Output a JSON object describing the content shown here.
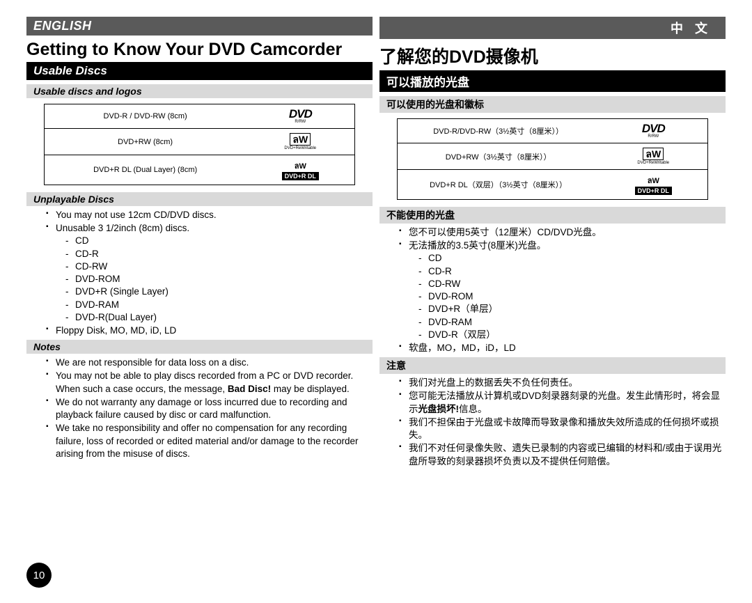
{
  "left": {
    "lang": "ENGLISH",
    "title": "Getting to Know Your DVD Camcorder",
    "section": "Usable Discs",
    "tableHead": "Usable discs and logos",
    "discs": [
      {
        "label": "DVD-R / DVD-RW (8cm)",
        "logo": "dvd",
        "sub": "R/RW"
      },
      {
        "label": "DVD+RW (8cm)",
        "logo": "rw",
        "sub": "DVD+ReWritable"
      },
      {
        "label": "DVD+R DL (Dual Layer) (8cm)",
        "logo": "rdl",
        "top": "ลW",
        "sub": "DVD+R DL"
      }
    ],
    "unplayHead": "Unplayable Discs",
    "unplay1": "You may not use 12cm CD/DVD discs.",
    "unplay2": "Unusable 3 1/2inch (8cm) discs.",
    "unplayList": [
      "CD",
      "CD-R",
      "CD-RW",
      "DVD-ROM",
      "DVD+R (Single Layer)",
      "DVD-RAM",
      "DVD-R(Dual Layer)"
    ],
    "unplay3": "Floppy Disk, MO, MD, iD, LD",
    "notesHead": "Notes",
    "note1": "We are not responsible for data loss on a disc.",
    "note2a": "You may not be able to play discs recorded from a PC or DVD recorder. When such a case occurs, the message, ",
    "note2b": "Bad Disc!",
    "note2c": " may be displayed.",
    "note3": "We do not warranty any damage or loss incurred due to recording and playback failure caused by disc or card malfunction.",
    "note4": "We take no responsibility and offer no compensation for any recording failure, loss of recorded or edited material and/or damage to the recorder arising from the misuse of discs."
  },
  "right": {
    "lang": "中  文",
    "title": "了解您的DVD摄像机",
    "section": "可以播放的光盘",
    "tableHead": "可以使用的光盘和徽标",
    "discs": [
      {
        "label": "DVD-R/DVD-RW（3½英寸（8厘米））",
        "logo": "dvd",
        "sub": "R/RW"
      },
      {
        "label": "DVD+RW（3½英寸（8厘米））",
        "logo": "rw",
        "sub": "DVD+ReWritable"
      },
      {
        "label": "DVD+R DL（双层）（3½英寸（8厘米））",
        "logo": "rdl",
        "top": "ลW",
        "sub": "DVD+R DL"
      }
    ],
    "unplayHead": "不能使用的光盘",
    "unplay1": "您不可以使用5英寸（12厘米）CD/DVD光盘。",
    "unplay2": "无法播放的3.5英寸(8厘米)光盘。",
    "unplayList": [
      "CD",
      "CD-R",
      "CD-RW",
      "DVD-ROM",
      "DVD+R（单层）",
      "DVD-RAM",
      "DVD-R（双层）"
    ],
    "unplay3": "软盘，MO，MD，iD，LD",
    "notesHead": "注意",
    "note1": "我们对光盘上的数据丢失不负任何责任。",
    "note2a": "您可能无法播放从计算机或DVD刻录器刻录的光盘。发生此情形时，将会显示",
    "note2b": "光盘损坏!",
    "note2c": "信息。",
    "note3": "我们不担保由于光盘或卡故障而导致录像和播放失效所造成的任何损坏或损失。",
    "note4": "我们不对任何录像失败、遗失已录制的内容或已编辑的材料和/或由于误用光盘所导致的刻录器损坏负责以及不提供任何赔偿。"
  },
  "pageNum": "10"
}
